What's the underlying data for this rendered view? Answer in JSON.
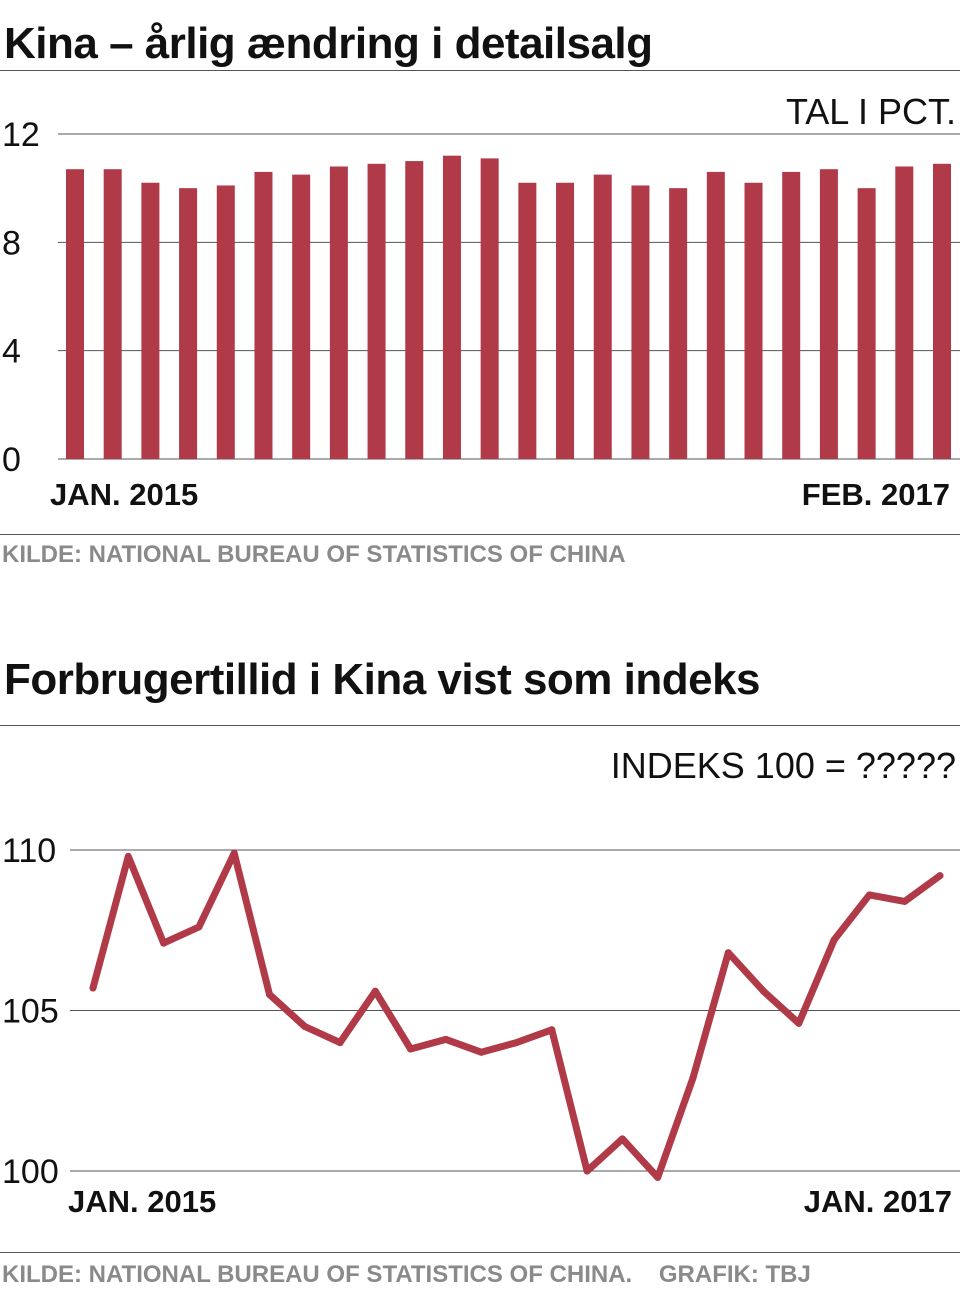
{
  "charts": {
    "retail": {
      "title": "Kina – årlig ændring i detailsalg",
      "unit": "TAL I PCT.",
      "source": "KILDE: NATIONAL BUREAU OF STATISTICS OF CHINA",
      "x_start_label": "JAN. 2015",
      "x_end_label": "FEB. 2017"
    },
    "confidence": {
      "title": "Forbrugertillid i Kina vist som indeks",
      "unit": "INDEKS 100 = ?????",
      "source": "KILDE: NATIONAL BUREAU OF STATISTICS OF CHINA.    GRAFIK: TBJ",
      "x_start_label": "JAN. 2015",
      "x_end_label": "JAN. 2017"
    }
  },
  "colors": {
    "series": "#b03a48",
    "grid": "#555555",
    "source_text": "#8a8a8a"
  },
  "chart_data": [
    {
      "type": "bar",
      "title": "Kina – årlig ændring i detailsalg",
      "ylabel": "TAL I PCT.",
      "ylim": [
        0,
        12
      ],
      "yticks": [
        0,
        4,
        8,
        12
      ],
      "grid": true,
      "x_start_label": "JAN. 2015",
      "x_end_label": "FEB. 2017",
      "values": [
        10.7,
        10.7,
        10.2,
        10.0,
        10.1,
        10.6,
        10.5,
        10.8,
        10.9,
        11.0,
        11.2,
        11.1,
        10.2,
        10.2,
        10.5,
        10.1,
        10.0,
        10.6,
        10.2,
        10.6,
        10.7,
        10.0,
        10.8,
        10.9
      ]
    },
    {
      "type": "line",
      "title": "Forbrugertillid i Kina vist som indeks",
      "ylabel": "INDEKS 100 = ?????",
      "ylim": [
        100,
        110
      ],
      "yticks": [
        100,
        105,
        110
      ],
      "grid": true,
      "x_start_label": "JAN. 2015",
      "x_end_label": "JAN. 2017",
      "values": [
        105.7,
        109.8,
        107.1,
        107.6,
        109.9,
        105.5,
        104.5,
        104.0,
        105.6,
        103.8,
        104.1,
        103.7,
        104.0,
        104.4,
        100.0,
        101.0,
        99.8,
        102.9,
        106.8,
        105.6,
        104.6,
        107.2,
        108.6,
        108.4,
        109.2
      ]
    }
  ]
}
